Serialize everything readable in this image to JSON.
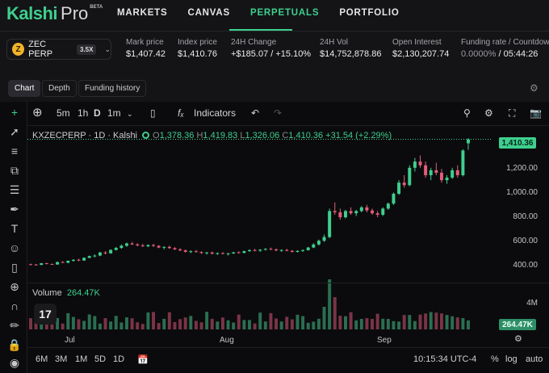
{
  "brand": {
    "name": "Kalshi",
    "product": "Pro",
    "badge": "BETA"
  },
  "nav": {
    "items": [
      "MARKETS",
      "CANVAS",
      "PERPETUALS",
      "PORTFOLIO"
    ],
    "active": "PERPETUALS"
  },
  "market": {
    "icon_letter": "Z",
    "symbol": "ZEC PERP",
    "leverage": "3.5X"
  },
  "stats": [
    {
      "label": "Mark price",
      "value": "$1,407.42"
    },
    {
      "label": "Index price",
      "value": "$1,410.76"
    },
    {
      "label": "24H Change",
      "value": "+$185.07 / +15.10%"
    },
    {
      "label": "24H Vol",
      "value": "$14,752,878.86"
    },
    {
      "label": "Open Interest",
      "value": "$2,130,207.74"
    },
    {
      "label": "Funding rate / Countdown",
      "value_rate": "0.0000%",
      "value_countdown": "05:44:26"
    }
  ],
  "chart_tabs": [
    "Chart",
    "Depth",
    "Funding history"
  ],
  "toolbar": {
    "intervals": [
      "5m",
      "1h",
      "D",
      "1m"
    ],
    "indicators_label": "Indicators"
  },
  "legend": {
    "symbol": "KXZECPERP · 1D · Kalshi",
    "o_label": "O",
    "o": "1,378.36",
    "h_label": "H",
    "h": "1,419.83",
    "l_label": "L",
    "l": "1,326.06",
    "c_label": "C",
    "c": "1,410.36",
    "change": "+31.54 (+2.29%)"
  },
  "volume": {
    "label": "Volume",
    "value": "264.47K",
    "axis_label": "4M"
  },
  "bottom_bar": {
    "ranges": [
      "6M",
      "3M",
      "1M",
      "5D",
      "1D"
    ],
    "time": "10:15:34 UTC-4",
    "percent": "%",
    "log": "log",
    "auto": "auto"
  },
  "colors": {
    "up": "#3ecf8e",
    "down": "#e35d79",
    "vol_up": "#2b6e52",
    "vol_down": "#7a3447",
    "accent": "#3ecf8e"
  },
  "chart_data": {
    "type": "candlestick",
    "current_price": "1,410.36",
    "y_ticks": [
      "1,200.00",
      "1,000.00",
      "800.00",
      "600.00",
      "400.00"
    ],
    "y_tick_values": [
      1200,
      1000,
      800,
      600,
      400
    ],
    "x_ticks": [
      "Jul",
      "Aug",
      "Sep"
    ],
    "ohlc_samples": [
      [
        400,
        405,
        392,
        398
      ],
      [
        398,
        402,
        390,
        395
      ],
      [
        395,
        410,
        392,
        408
      ],
      [
        408,
        412,
        400,
        402
      ],
      [
        402,
        405,
        395,
        398
      ],
      [
        398,
        420,
        396,
        418
      ],
      [
        418,
        425,
        410,
        412
      ],
      [
        412,
        430,
        408,
        428
      ],
      [
        428,
        440,
        420,
        436
      ],
      [
        436,
        445,
        425,
        430
      ],
      [
        430,
        455,
        428,
        452
      ],
      [
        452,
        470,
        448,
        466
      ],
      [
        466,
        480,
        455,
        470
      ],
      [
        470,
        500,
        465,
        495
      ],
      [
        495,
        505,
        480,
        488
      ],
      [
        488,
        520,
        485,
        516
      ],
      [
        516,
        540,
        510,
        532
      ],
      [
        532,
        560,
        525,
        550
      ],
      [
        550,
        575,
        540,
        568
      ],
      [
        568,
        580,
        555,
        560
      ],
      [
        560,
        570,
        545,
        552
      ],
      [
        552,
        565,
        540,
        545
      ],
      [
        545,
        560,
        538,
        555
      ],
      [
        555,
        565,
        540,
        548
      ],
      [
        548,
        555,
        530,
        535
      ],
      [
        535,
        545,
        520,
        540
      ],
      [
        540,
        550,
        525,
        530
      ],
      [
        530,
        538,
        515,
        520
      ],
      [
        520,
        530,
        505,
        512
      ],
      [
        512,
        520,
        495,
        500
      ],
      [
        500,
        512,
        490,
        505
      ],
      [
        505,
        515,
        495,
        498
      ],
      [
        498,
        505,
        485,
        490
      ],
      [
        490,
        500,
        478,
        495
      ],
      [
        495,
        502,
        480,
        485
      ],
      [
        485,
        495,
        475,
        490
      ],
      [
        490,
        498,
        480,
        484
      ],
      [
        484,
        492,
        470,
        488
      ],
      [
        488,
        500,
        482,
        496
      ],
      [
        496,
        505,
        488,
        492
      ],
      [
        492,
        510,
        488,
        506
      ],
      [
        506,
        520,
        500,
        514
      ],
      [
        514,
        525,
        505,
        510
      ],
      [
        510,
        522,
        500,
        518
      ],
      [
        518,
        530,
        510,
        524
      ],
      [
        524,
        535,
        515,
        520
      ],
      [
        520,
        528,
        505,
        512
      ],
      [
        512,
        520,
        500,
        515
      ],
      [
        515,
        525,
        505,
        508
      ],
      [
        508,
        515,
        495,
        500
      ],
      [
        500,
        512,
        495,
        508
      ],
      [
        508,
        520,
        500,
        514
      ],
      [
        514,
        540,
        510,
        535
      ],
      [
        535,
        570,
        530,
        560
      ],
      [
        560,
        600,
        550,
        590
      ],
      [
        590,
        640,
        580,
        620
      ],
      [
        620,
        850,
        610,
        830
      ],
      [
        830,
        900,
        800,
        820
      ],
      [
        820,
        850,
        760,
        780
      ],
      [
        780,
        840,
        770,
        830
      ],
      [
        830,
        860,
        800,
        812
      ],
      [
        812,
        840,
        790,
        830
      ],
      [
        830,
        870,
        820,
        860
      ],
      [
        860,
        880,
        820,
        835
      ],
      [
        835,
        850,
        800,
        812
      ],
      [
        812,
        830,
        780,
        800
      ],
      [
        800,
        860,
        790,
        850
      ],
      [
        850,
        900,
        840,
        890
      ],
      [
        890,
        980,
        880,
        970
      ],
      [
        970,
        1080,
        960,
        1060
      ],
      [
        1060,
        1120,
        1020,
        1040
      ],
      [
        1040,
        1200,
        1030,
        1180
      ],
      [
        1180,
        1260,
        1150,
        1230
      ],
      [
        1230,
        1280,
        1180,
        1200
      ],
      [
        1200,
        1230,
        1100,
        1120
      ],
      [
        1120,
        1180,
        1080,
        1160
      ],
      [
        1160,
        1220,
        1120,
        1140
      ],
      [
        1140,
        1170,
        1060,
        1080
      ],
      [
        1080,
        1120,
        1050,
        1100
      ],
      [
        1100,
        1180,
        1090,
        1160
      ],
      [
        1160,
        1200,
        1100,
        1120
      ],
      [
        1120,
        1330,
        1110,
        1320
      ],
      [
        1378,
        1420,
        1326,
        1410
      ]
    ]
  }
}
